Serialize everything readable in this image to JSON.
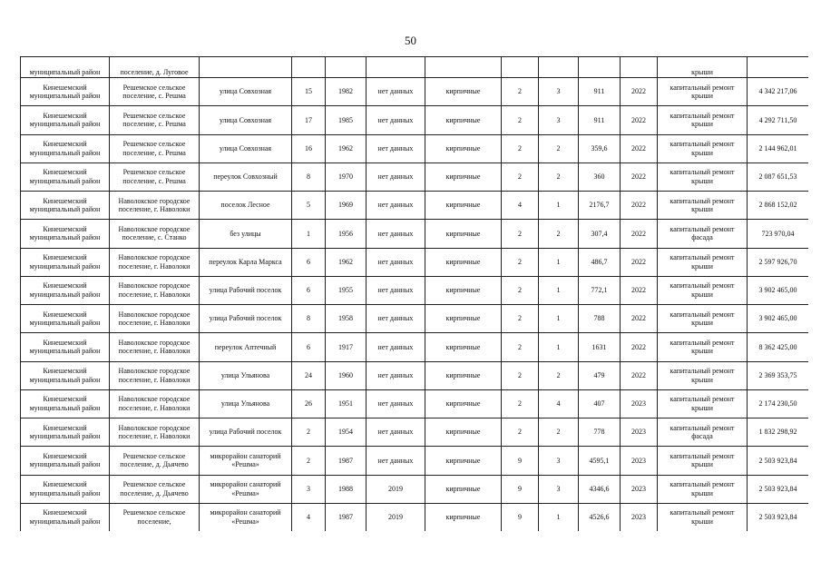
{
  "page_number": "50",
  "first_row_partial": [
    "муниципальный район",
    "поселение, д. Луговое",
    "",
    "",
    "",
    "",
    "",
    "",
    "",
    "",
    "",
    "",
    "крыши",
    ""
  ],
  "rows": [
    [
      "Кинешемский муниципальный район",
      "Решемское сельское поселение, с. Решма",
      "улица Совхозная",
      "15",
      "1982",
      "нет данных",
      "кирпичные",
      "2",
      "3",
      "911",
      "2022",
      "капитальный ремонт крыши",
      "4 342 217,06"
    ],
    [
      "Кинешемский муниципальный район",
      "Решемское сельское поселение, с. Решма",
      "улица Совхозная",
      "17",
      "1985",
      "нет данных",
      "кирпичные",
      "2",
      "3",
      "911",
      "2022",
      "капитальный ремонт крыши",
      "4 292 711,50"
    ],
    [
      "Кинешемский муниципальный район",
      "Решемское сельское поселение, с. Решма",
      "улица Совхозная",
      "16",
      "1962",
      "нет данных",
      "кирпичные",
      "2",
      "2",
      "359,6",
      "2022",
      "капитальный ремонт крыши",
      "2 144 962,01"
    ],
    [
      "Кинешемский муниципальный район",
      "Решемское сельское поселение, с. Решма",
      "переулок Совхозный",
      "8",
      "1970",
      "нет данных",
      "кирпичные",
      "2",
      "2",
      "360",
      "2022",
      "капитальный ремонт крыши",
      "2 087 651,53"
    ],
    [
      "Кинешемский муниципальный район",
      "Наволокское городское поселение, г. Наволоки",
      "поселок Лесное",
      "5",
      "1969",
      "нет данных",
      "кирпичные",
      "4",
      "1",
      "2176,7",
      "2022",
      "капитальный ремонт крыши",
      "2 868 152,02"
    ],
    [
      "Кинешемский муниципальный район",
      "Наволокское городское поселение, с. Станко",
      "без улицы",
      "1",
      "1956",
      "нет данных",
      "кирпичные",
      "2",
      "2",
      "307,4",
      "2022",
      "капитальный ремонт фасада",
      "723 970,04"
    ],
    [
      "Кинешемский муниципальный район",
      "Наволокское городское поселение, г. Наволоки",
      "переулок Карла Маркса",
      "6",
      "1962",
      "нет данных",
      "кирпичные",
      "2",
      "1",
      "486,7",
      "2022",
      "капитальный ремонт крыши",
      "2 597 926,70"
    ],
    [
      "Кинешемский муниципальный район",
      "Наволокское городское поселение, г. Наволоки",
      "улица Рабочий поселок",
      "6",
      "1955",
      "нет данных",
      "кирпичные",
      "2",
      "1",
      "772,1",
      "2022",
      "капитальный ремонт крыши",
      "3 902 465,00"
    ],
    [
      "Кинешемский муниципальный район",
      "Наволокское городское поселение, г. Наволоки",
      "улица Рабочий поселок",
      "8",
      "1958",
      "нет данных",
      "кирпичные",
      "2",
      "1",
      "788",
      "2022",
      "капитальный ремонт крыши",
      "3 902 465,00"
    ],
    [
      "Кинешемский муниципальный район",
      "Наволокское городское поселение, г. Наволоки",
      "переулок Аптечный",
      "6",
      "1917",
      "нет данных",
      "кирпичные",
      "2",
      "1",
      "1631",
      "2022",
      "капитальный ремонт крыши",
      "8 362 425,00"
    ],
    [
      "Кинешемский муниципальный район",
      "Наволокское городское поселение, г. Наволоки",
      "улица Ульянова",
      "24",
      "1960",
      "нет данных",
      "кирпичные",
      "2",
      "2",
      "479",
      "2022",
      "капитальный ремонт крыши",
      "2 369 353,75"
    ],
    [
      "Кинешемский муниципальный район",
      "Наволокское городское поселение, г. Наволоки",
      "улица Ульянова",
      "26",
      "1951",
      "нет данных",
      "кирпичные",
      "2",
      "4",
      "407",
      "2023",
      "капитальный ремонт крыши",
      "2 174 230,50"
    ],
    [
      "Кинешемский муниципальный район",
      "Наволокское городское поселение, г. Наволоки",
      "улица Рабочий поселок",
      "2",
      "1954",
      "нет данных",
      "кирпичные",
      "2",
      "2",
      "778",
      "2023",
      "капитальный ремонт фасада",
      "1 832 298,92"
    ],
    [
      "Кинешемский муниципальный район",
      "Решемское сельское поселение, д. Дьячево",
      "микрорайон санаторий «Решма»",
      "2",
      "1987",
      "нет данных",
      "кирпичные",
      "9",
      "3",
      "4595,1",
      "2023",
      "капитальный ремонт крыши",
      "2 503 923,84"
    ],
    [
      "Кинешемский муниципальный район",
      "Решемское сельское поселение, д. Дьячево",
      "микрорайон санаторий «Решма»",
      "3",
      "1988",
      "2019",
      "кирпичные",
      "9",
      "3",
      "4346,6",
      "2023",
      "капитальный ремонт крыши",
      "2 503 923,84"
    ],
    [
      "Кинешемский муниципальный район",
      "Решемское сельское поселение,",
      "микрорайон санаторий «Решма»",
      "4",
      "1987",
      "2019",
      "кирпичные",
      "9",
      "1",
      "4526,6",
      "2023",
      "капитальный ремонт крыши",
      "2 503 923,84"
    ]
  ]
}
